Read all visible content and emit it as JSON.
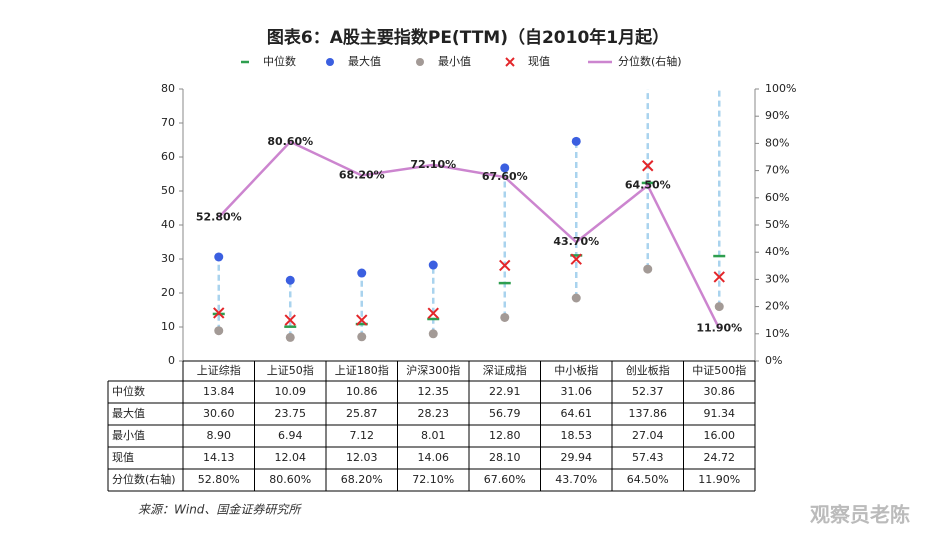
{
  "chart_data": {
    "type": "scatter",
    "title": "图表6：A股主要指数PE(TTM)（自2010年1月起）",
    "categories": [
      "上证综指",
      "上证50指",
      "上证180指",
      "沪深300指",
      "深证成指",
      "中小板指",
      "创业板指",
      "中证500指"
    ],
    "series": [
      {
        "name": "中位数",
        "marker": "dash",
        "color": "#2e9e4f",
        "values": [
          13.84,
          10.09,
          10.86,
          12.35,
          22.91,
          31.06,
          52.37,
          30.86
        ],
        "value_labels": [
          "13.84",
          "10.09",
          "10.86",
          "12.35",
          "22.91",
          "31.06",
          "52.37",
          "30.86"
        ]
      },
      {
        "name": "最大值",
        "marker": "circle",
        "color": "#3b5fe0",
        "values": [
          30.6,
          23.75,
          25.87,
          28.23,
          56.79,
          64.61,
          137.86,
          91.34
        ],
        "value_labels": [
          "30.60",
          "23.75",
          "25.87",
          "28.23",
          "56.79",
          "64.61",
          "137.86",
          "91.34"
        ]
      },
      {
        "name": "最小值",
        "marker": "circle",
        "color": "#a39a96",
        "values": [
          8.9,
          6.94,
          7.12,
          8.01,
          12.8,
          18.53,
          27.04,
          16
        ],
        "value_labels": [
          "8.90",
          "6.94",
          "7.12",
          "8.01",
          "12.80",
          "18.53",
          "27.04",
          "16.00"
        ]
      },
      {
        "name": "现值",
        "marker": "x",
        "color": "#e3262a",
        "values": [
          14.13,
          12.04,
          12.03,
          14.06,
          28.1,
          29.94,
          57.43,
          24.72
        ],
        "value_labels": [
          "14.13",
          "12.04",
          "12.03",
          "14.06",
          "28.10",
          "29.94",
          "57.43",
          "24.72"
        ]
      },
      {
        "name": "分位数(右轴)",
        "marker": "line",
        "axis": "y2",
        "color": "#cc85cf",
        "values": [
          52.8,
          80.6,
          68.2,
          72.1,
          67.6,
          43.7,
          64.5,
          11.9
        ],
        "value_labels": [
          "52.80%",
          "80.60%",
          "68.20%",
          "72.10%",
          "67.60%",
          "43.70%",
          "64.50%",
          "11.90%"
        ]
      }
    ],
    "range_line": true,
    "range_color": "#a9d3ee",
    "ylim": [
      0,
      80
    ],
    "yticks": [
      0,
      10,
      20,
      30,
      40,
      50,
      60,
      70,
      80
    ],
    "y2lim": [
      0,
      100
    ],
    "y2ticks": [
      {
        "value": 0,
        "label": "0%"
      },
      {
        "value": 10,
        "label": "10%"
      },
      {
        "value": 20,
        "label": "20%"
      },
      {
        "value": 30,
        "label": "30%"
      },
      {
        "value": 40,
        "label": "40%"
      },
      {
        "value": 50,
        "label": "50%"
      },
      {
        "value": 60,
        "label": "60%"
      },
      {
        "value": 70,
        "label": "70%"
      },
      {
        "value": 80,
        "label": "80%"
      },
      {
        "value": 90,
        "label": "90%"
      },
      {
        "value": 100,
        "label": "100%"
      }
    ],
    "source": "来源：Wind、国金证券研究所",
    "watermark": "观察员老陈"
  }
}
